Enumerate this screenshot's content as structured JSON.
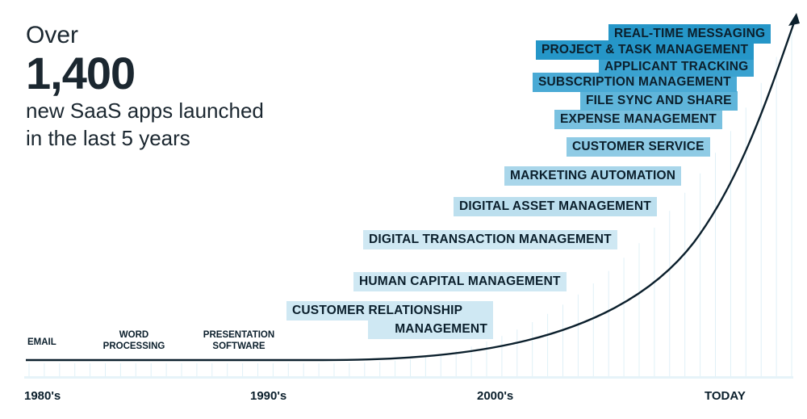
{
  "headline": {
    "over": "Over",
    "number": "1,400",
    "line1": "new SaaS apps launched",
    "line2": "in the last 5 years"
  },
  "early_apps": [
    {
      "line1": "EMAIL",
      "line2": ""
    },
    {
      "line1": "WORD",
      "line2": "PROCESSING"
    },
    {
      "line1": "PRESENTATION",
      "line2": "SOFTWARE"
    }
  ],
  "saas_categories": [
    {
      "label": "CUSTOMER RELATIONSHIP",
      "shade": "#cfe8f3"
    },
    {
      "label": "MANAGEMENT",
      "shade": "#cfe8f3"
    },
    {
      "label": "HUMAN CAPITAL MANAGEMENT",
      "shade": "#cfe8f3"
    },
    {
      "label": "DIGITAL TRANSACTION MANAGEMENT",
      "shade": "#cfe8f3"
    },
    {
      "label": "DIGITAL ASSET MANAGEMENT",
      "shade": "#bcdfee"
    },
    {
      "label": "MARKETING AUTOMATION",
      "shade": "#a9d6ea"
    },
    {
      "label": "CUSTOMER SERVICE",
      "shade": "#8fcbe5"
    },
    {
      "label": "EXPENSE MANAGEMENT",
      "shade": "#79c1e0"
    },
    {
      "label": "FILE SYNC AND SHARE",
      "shade": "#5fb5da"
    },
    {
      "label": "SUBSCRIPTION MANAGEMENT",
      "shade": "#4aaad5"
    },
    {
      "label": "APPLICANT TRACKING",
      "shade": "#3aa2d0"
    },
    {
      "label": "PROJECT & TASK MANAGEMENT",
      "shade": "#2596c8"
    },
    {
      "label": "REAL-TIME MESSAGING",
      "shade": "#2596c8"
    }
  ],
  "timeline": [
    "1980's",
    "1990's",
    "2000's",
    "TODAY"
  ],
  "colors": {
    "curve": "#0b1f2c",
    "tick": "#dff0f7"
  }
}
